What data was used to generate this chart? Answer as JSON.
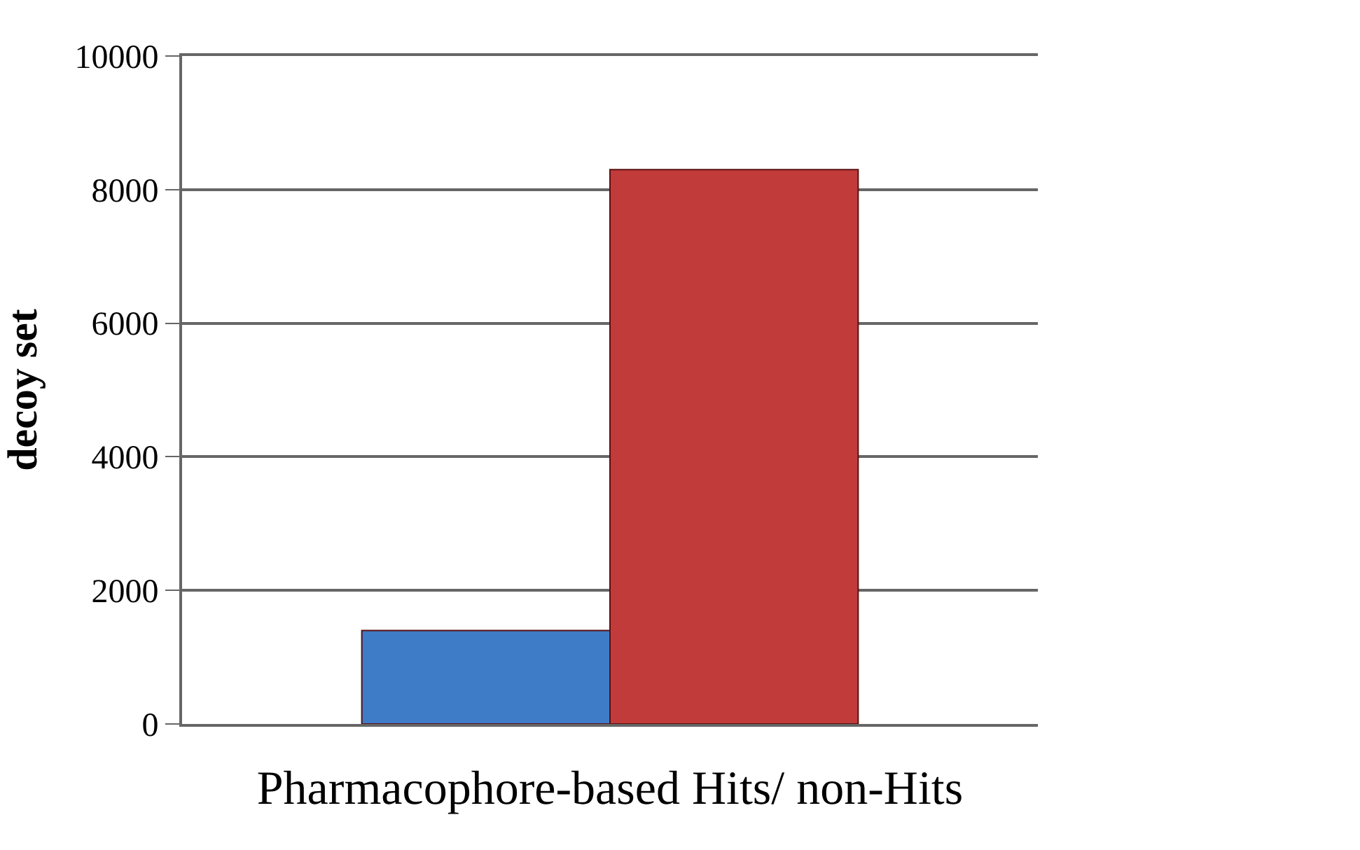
{
  "chart_data": {
    "type": "bar",
    "xlabel": "Pharmacophore-based Hits/ non-Hits",
    "ylabel": "decoy set",
    "categories": [
      null
    ],
    "series": [
      {
        "color": "#3f7cc8",
        "values": [
          1400
        ]
      },
      {
        "color": "#c13b3a",
        "values": [
          8300
        ]
      }
    ],
    "ylim": [
      0,
      10000
    ],
    "yticks": [
      0,
      2000,
      4000,
      6000,
      8000,
      10000
    ],
    "grid": "y"
  }
}
